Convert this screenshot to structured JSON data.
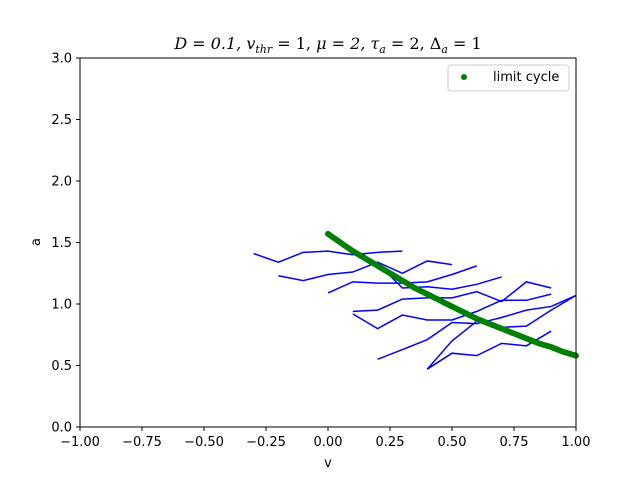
{
  "chart_data": {
    "type": "line",
    "title": "D = 0.1, v_thr = 1, μ = 2, τ_a = 2, Δ_a = 1",
    "title_parts": {
      "D": "D = 0.1, ",
      "v": "v",
      "thr": "thr",
      "v_rest": " = 1, ",
      "mu": "μ = 2, ",
      "tau": "τ",
      "tau_sub": "a",
      "tau_rest": " = 2, ",
      "delta": "Δ",
      "delta_sub": "a",
      "delta_rest": " = 1"
    },
    "xlabel": "v",
    "ylabel": "a",
    "xlim": [
      -1.0,
      1.0
    ],
    "ylim": [
      0.0,
      3.0
    ],
    "xticks": [
      "−1.00",
      "−0.75",
      "−0.50",
      "−0.25",
      "0.00",
      "0.25",
      "0.50",
      "0.75",
      "1.00"
    ],
    "yticks": [
      "0.0",
      "0.5",
      "1.0",
      "1.5",
      "2.0",
      "2.5",
      "3.0"
    ],
    "grid": false,
    "legend": {
      "position": "top-right",
      "entries": [
        "limit cycle"
      ]
    },
    "colors": {
      "trajectories": "#0000ff",
      "limit_cycle": "#008000"
    },
    "trajectories": [
      [
        [
          -0.3,
          1.41
        ],
        [
          -0.2,
          1.34
        ],
        [
          -0.1,
          1.42
        ],
        [
          0.0,
          1.43
        ],
        [
          0.1,
          1.4
        ],
        [
          0.2,
          1.42
        ],
        [
          0.3,
          1.43
        ]
      ],
      [
        [
          -0.2,
          1.23
        ],
        [
          -0.1,
          1.19
        ],
        [
          0.0,
          1.24
        ],
        [
          0.1,
          1.26
        ],
        [
          0.2,
          1.34
        ],
        [
          0.3,
          1.25
        ],
        [
          0.4,
          1.35
        ],
        [
          0.5,
          1.32
        ]
      ],
      [
        [
          0.0,
          1.09
        ],
        [
          0.1,
          1.18
        ],
        [
          0.2,
          1.17
        ],
        [
          0.3,
          1.17
        ],
        [
          0.4,
          1.18
        ],
        [
          0.5,
          1.24
        ],
        [
          0.6,
          1.31
        ]
      ],
      [
        [
          0.1,
          1.45
        ],
        [
          0.2,
          1.33
        ],
        [
          0.3,
          1.13
        ],
        [
          0.4,
          1.14
        ],
        [
          0.5,
          1.12
        ],
        [
          0.6,
          1.16
        ],
        [
          0.7,
          1.22
        ]
      ],
      [
        [
          0.1,
          0.94
        ],
        [
          0.2,
          0.95
        ],
        [
          0.3,
          1.04
        ],
        [
          0.4,
          1.05
        ],
        [
          0.5,
          1.05
        ],
        [
          0.6,
          1.1
        ],
        [
          0.7,
          1.02
        ],
        [
          0.8,
          1.18
        ],
        [
          0.9,
          1.13
        ]
      ],
      [
        [
          0.1,
          0.92
        ],
        [
          0.2,
          0.8
        ],
        [
          0.3,
          0.91
        ],
        [
          0.4,
          0.87
        ],
        [
          0.5,
          0.87
        ],
        [
          0.6,
          0.94
        ],
        [
          0.7,
          1.03
        ],
        [
          0.8,
          1.03
        ],
        [
          0.9,
          1.08
        ]
      ],
      [
        [
          0.2,
          0.55
        ],
        [
          0.3,
          0.63
        ],
        [
          0.4,
          0.71
        ],
        [
          0.5,
          0.85
        ],
        [
          0.6,
          0.84
        ],
        [
          0.7,
          0.89
        ],
        [
          0.8,
          0.95
        ],
        [
          0.9,
          0.98
        ],
        [
          1.0,
          1.07
        ]
      ],
      [
        [
          0.4,
          0.47
        ],
        [
          0.5,
          0.6
        ],
        [
          0.6,
          0.58
        ],
        [
          0.7,
          0.68
        ],
        [
          0.8,
          0.66
        ],
        [
          0.9,
          0.78
        ]
      ],
      [
        [
          0.4,
          0.47
        ],
        [
          0.5,
          0.7
        ],
        [
          0.6,
          0.86
        ],
        [
          0.7,
          0.81
        ],
        [
          0.8,
          0.82
        ],
        [
          0.9,
          0.95
        ],
        [
          1.0,
          1.07
        ]
      ]
    ],
    "limit_cycle": {
      "v_start": 0.0,
      "v_end": 1.0,
      "points": [
        [
          0.0,
          1.57
        ],
        [
          0.05,
          1.5
        ],
        [
          0.1,
          1.43
        ],
        [
          0.15,
          1.37
        ],
        [
          0.2,
          1.31
        ],
        [
          0.25,
          1.25
        ],
        [
          0.3,
          1.19
        ],
        [
          0.35,
          1.13
        ],
        [
          0.4,
          1.08
        ],
        [
          0.45,
          1.03
        ],
        [
          0.5,
          0.98
        ],
        [
          0.55,
          0.93
        ],
        [
          0.6,
          0.88
        ],
        [
          0.65,
          0.84
        ],
        [
          0.7,
          0.8
        ],
        [
          0.75,
          0.76
        ],
        [
          0.8,
          0.72
        ],
        [
          0.85,
          0.68
        ],
        [
          0.9,
          0.65
        ],
        [
          0.95,
          0.61
        ],
        [
          1.0,
          0.58
        ]
      ]
    }
  }
}
